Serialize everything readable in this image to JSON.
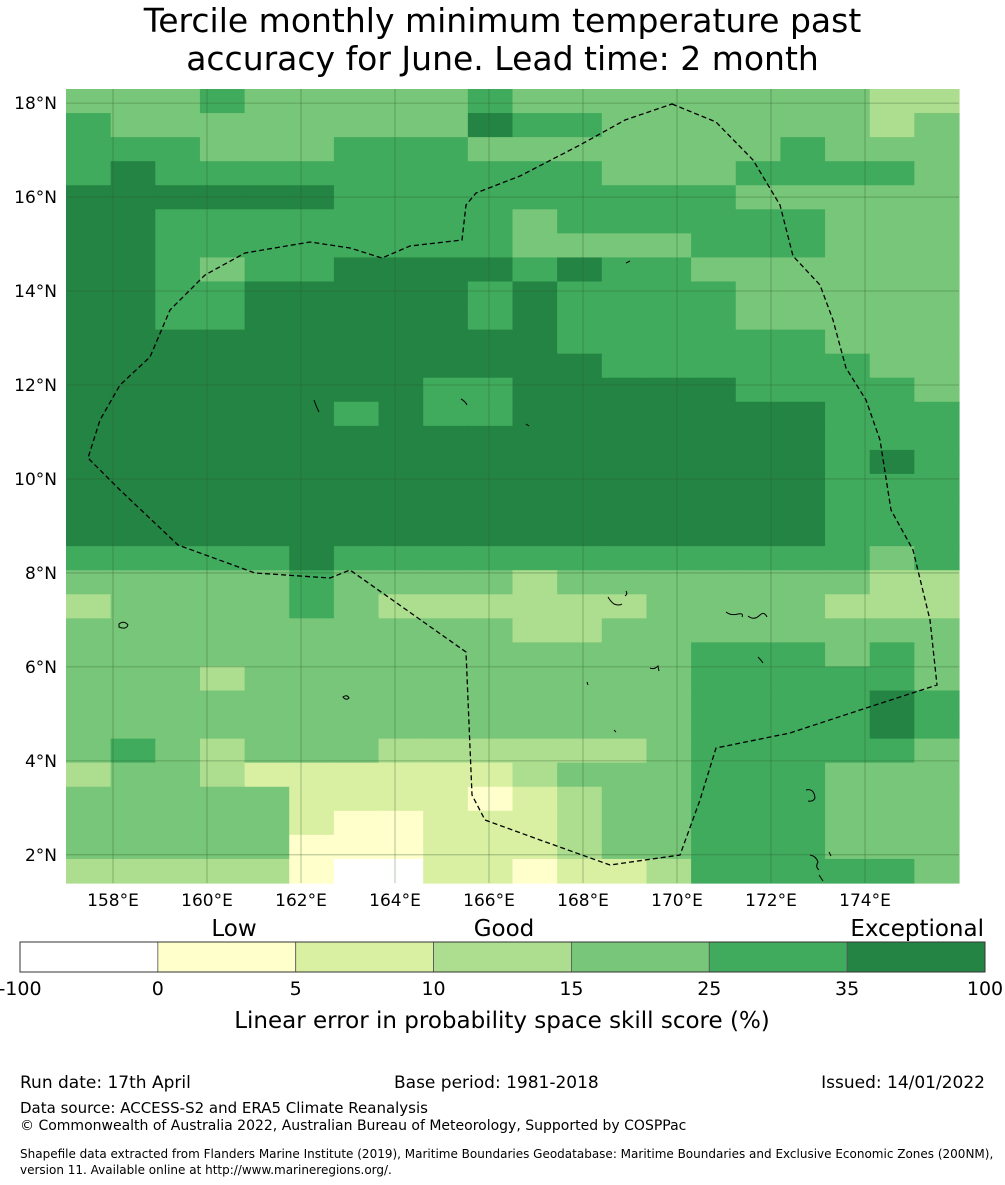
{
  "title_line1": "Tercile monthly minimum temperature past",
  "title_line2": "accuracy for June. Lead time: 2 month",
  "map": {
    "type": "heatmap",
    "lon_range": [
      157.0,
      176.0
    ],
    "lat_range": [
      1.4,
      18.3
    ],
    "cell_size_deg": 0.83,
    "x_ticks": [
      "158°E",
      "160°E",
      "162°E",
      "164°E",
      "166°E",
      "168°E",
      "170°E",
      "172°E",
      "174°E"
    ],
    "x_tick_values": [
      158,
      160,
      162,
      164,
      166,
      168,
      170,
      172,
      174
    ],
    "y_ticks": [
      "2°N",
      "4°N",
      "6°N",
      "8°N",
      "10°N",
      "12°N",
      "14°N",
      "16°N",
      "18°N"
    ],
    "y_tick_values": [
      2,
      4,
      6,
      8,
      10,
      12,
      14,
      16,
      18
    ],
    "gridlines": true,
    "grid_values_rows_top_to_bottom": [
      "44454444454444444433",
      "54444444465544444434",
      "55544455544444445444",
      "56555555555544455554",
      "66666655555555544444",
      "66555555554555555444",
      "66555555554444555444",
      "66545566665655444444",
      "66556666656555544444",
      "66556666656555544444",
      "66666666666555555444",
      "66666666666655555544",
      "66666666556666655554",
      "66666656556666666555",
      "66666666666666666555",
      "66666666666666666565",
      "66666666666666666555",
      "66666666666666666555",
      "66666666666666666555",
      "55555655555555555545",
      "44444544443444444433",
      "34444543333334444333",
      "44444444443344444444",
      "44444444444444555454",
      "44434444444444555554",
      "44444444444444555565",
      "44444444444444555565",
      "45434443333334555554",
      "34432222223444555444",
      "44444222212344555444",
      "44444211222344555444",
      "44444111222344555444",
      "33333100221223555554"
    ],
    "legend_categories": [
      "-100 to 0",
      "0 to 5",
      "5 to 10",
      "10 to 15",
      "15 to 25",
      "25 to 35",
      "35 to 100"
    ]
  },
  "colorbar": {
    "top_labels": [
      "Low",
      "Good",
      "Exceptional"
    ],
    "tick_labels": [
      "-100",
      "0",
      "5",
      "10",
      "15",
      "25",
      "35",
      "100"
    ],
    "colors": [
      "#ffffff",
      "#ffffcc",
      "#d9f0a3",
      "#addd8e",
      "#78c679",
      "#41ab5d",
      "#238443"
    ],
    "xlabel": "Linear error in probability space skill score (%)"
  },
  "footer": {
    "run_date": "Run date: 17th April",
    "base_period": "Base period: 1981-2018",
    "issued": "Issued: 14/01/2022",
    "data_source": "Data source: ACCESS-S2 and ERA5 Climate Reanalysis",
    "copyright": "© Commonwealth of Australia 2022, Australian Bureau of Meteorology, Supported by COSPPac",
    "shapefile_note": "Shapefile data extracted from Flanders Marine Institute (2019), Maritime Boundaries Geodatabase: Maritime Boundaries and Exclusive Economic Zones (200NM), version 11. Available online at http://www.marineregions.org/."
  }
}
